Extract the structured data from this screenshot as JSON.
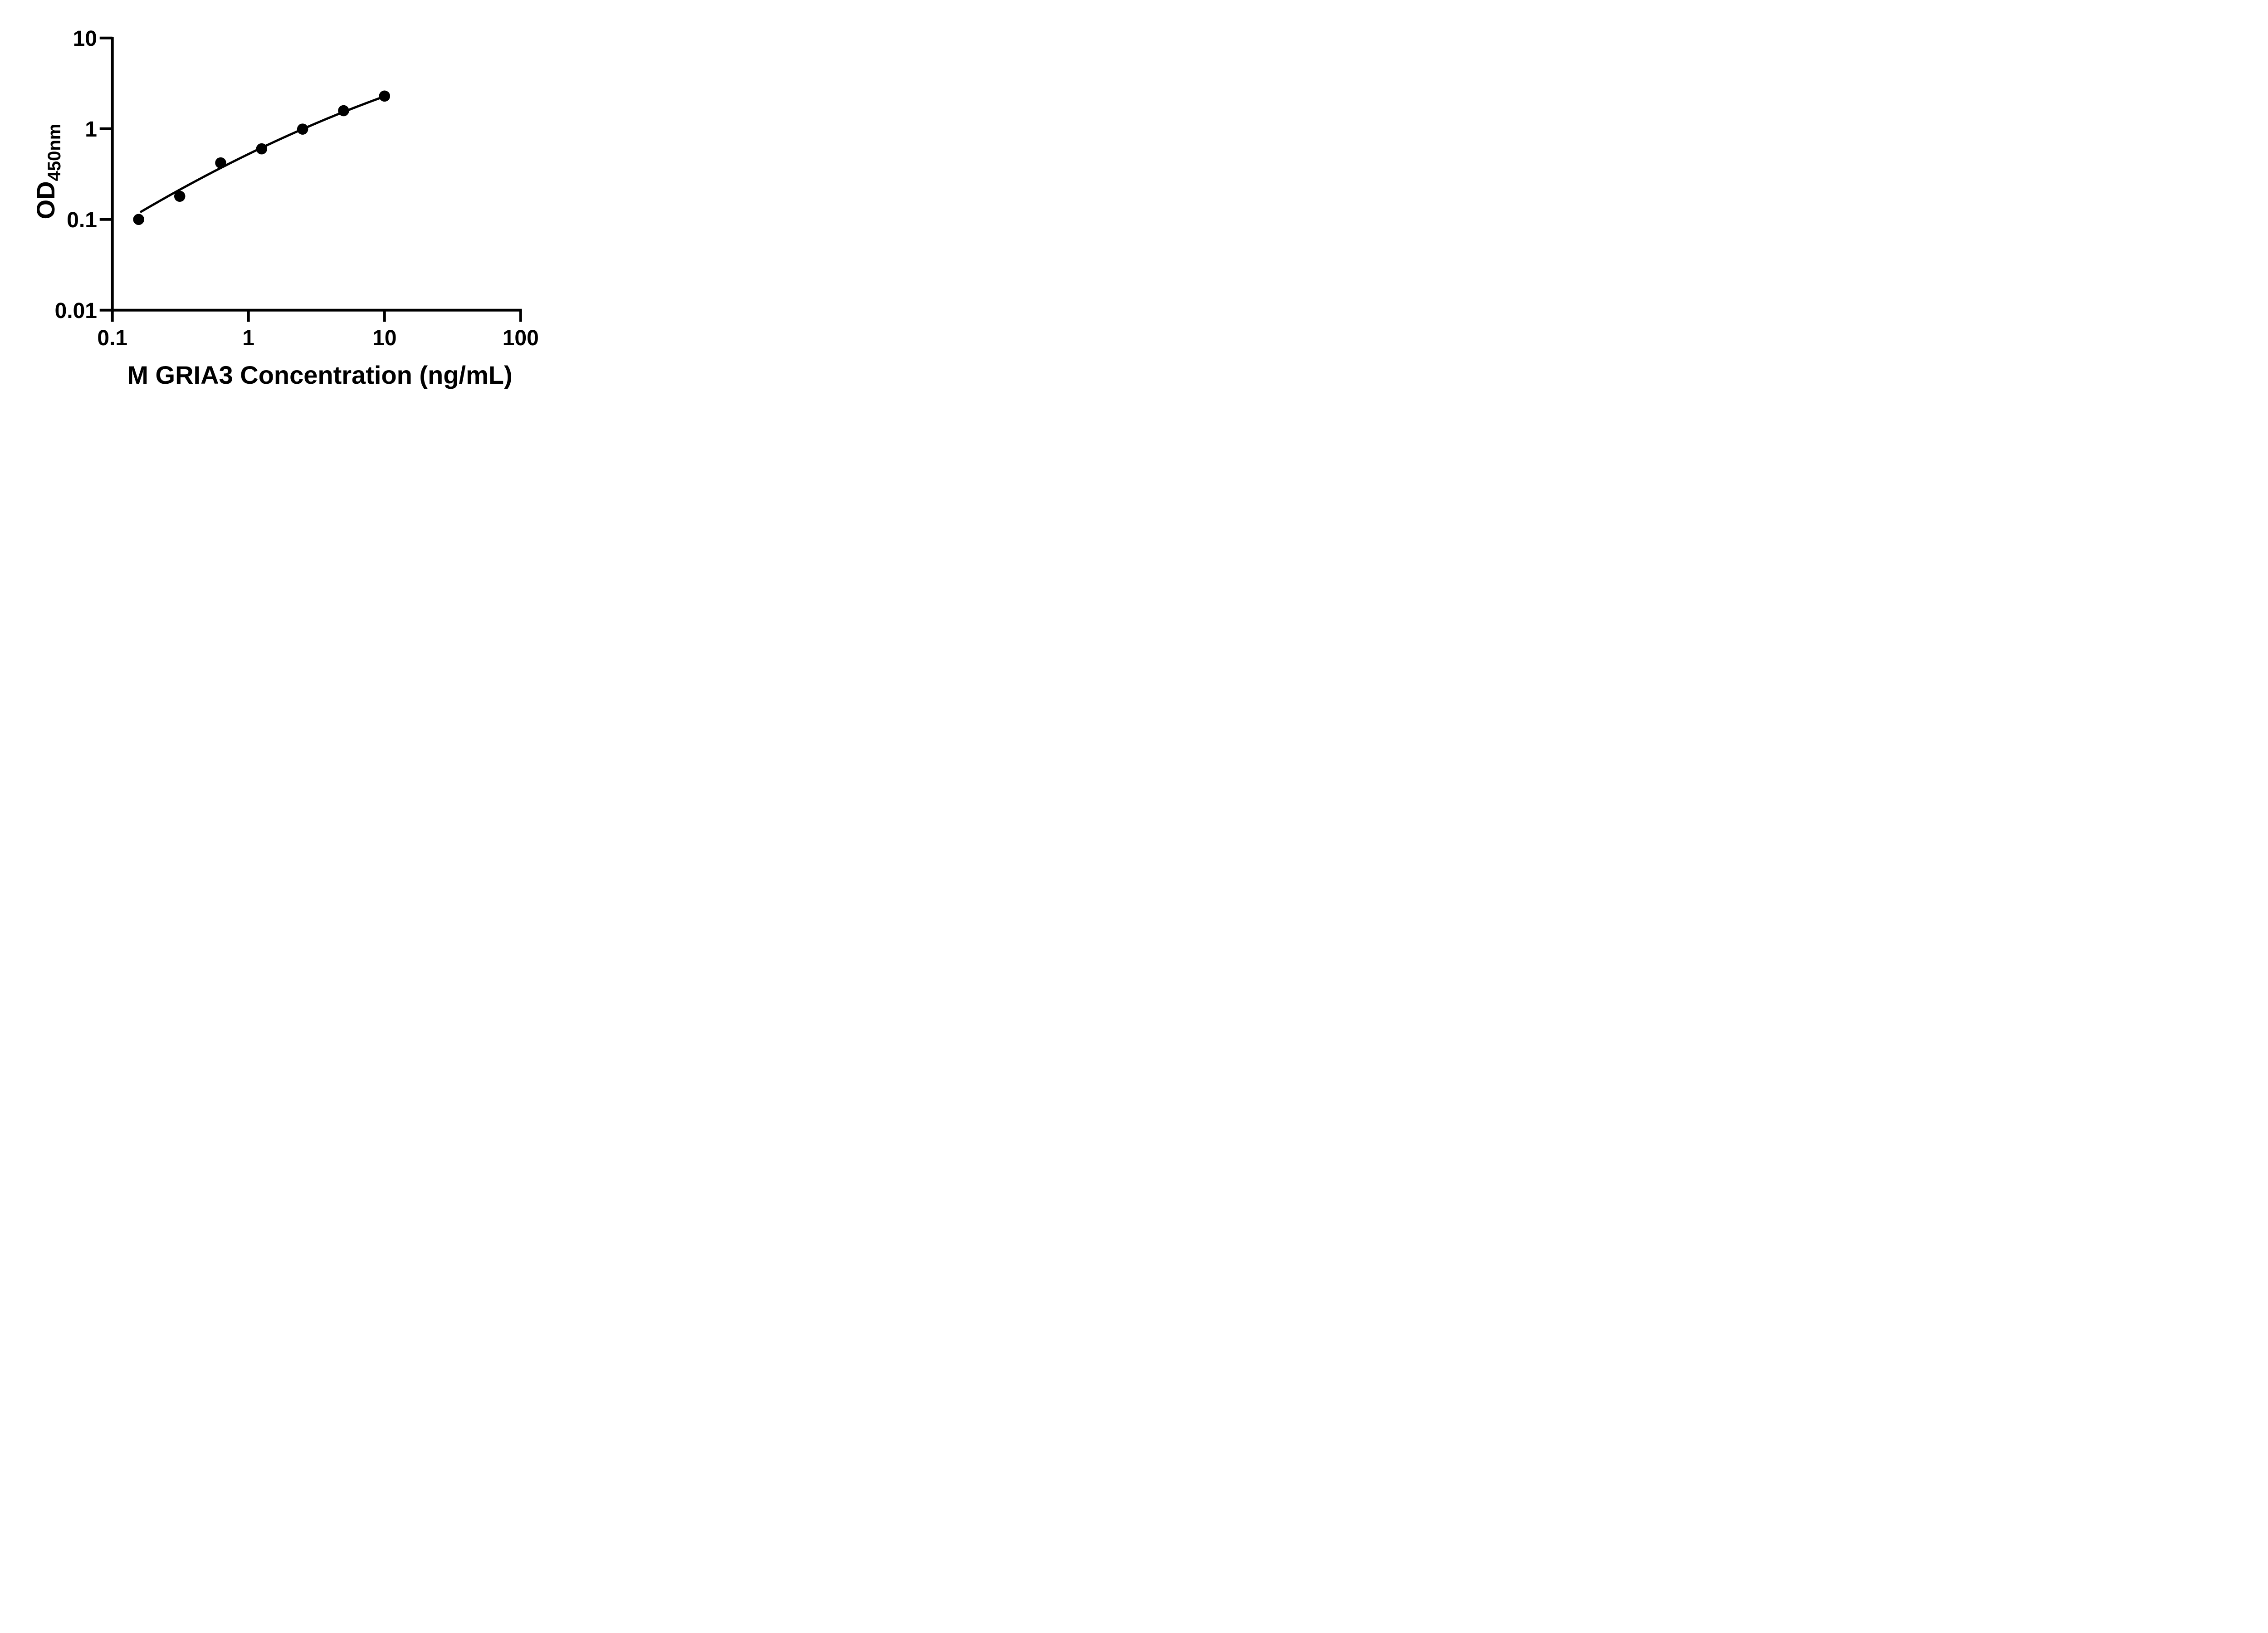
{
  "chart_data": {
    "type": "scatter",
    "title": "",
    "background_color": "#ffffff",
    "foreground_color": "#000000",
    "grid": false,
    "legend": "none",
    "x_axis": {
      "label": "M GRIA3 Concentration (ng/mL)",
      "scale": "log10",
      "range": [
        0.1,
        100
      ],
      "tick_values": [
        0.1,
        1,
        10,
        100
      ],
      "tick_labels": [
        "0.1",
        "1",
        "10",
        "100"
      ]
    },
    "y_axis": {
      "label_main": "OD",
      "label_sub": "450nm",
      "label_full": "OD450nm",
      "scale": "log10",
      "range": [
        0.01,
        10
      ],
      "tick_values": [
        10,
        1,
        0.1,
        0.01
      ],
      "tick_labels": [
        "10",
        "1",
        "0.1",
        "0.01"
      ]
    },
    "series": [
      {
        "name": "standard-curve-points",
        "marker": "filled-circle",
        "marker_color": "#000000",
        "points": [
          {
            "x": 0.156,
            "y": 0.1
          },
          {
            "x": 0.3125,
            "y": 0.18
          },
          {
            "x": 0.625,
            "y": 0.42
          },
          {
            "x": 1.25,
            "y": 0.6
          },
          {
            "x": 2.5,
            "y": 0.99
          },
          {
            "x": 5,
            "y": 1.58
          },
          {
            "x": 10,
            "y": 2.29
          }
        ]
      }
    ],
    "fit_curve": {
      "description": "drawn best-fit curve, quadratic in log10-log10 space: log10(y) = a + b*t + c*t^2, t = log10(x)",
      "a": -0.2797,
      "b": 0.7304,
      "c": -0.0943,
      "x_start": 0.16,
      "x_end": 10.14,
      "color": "#000000"
    }
  }
}
